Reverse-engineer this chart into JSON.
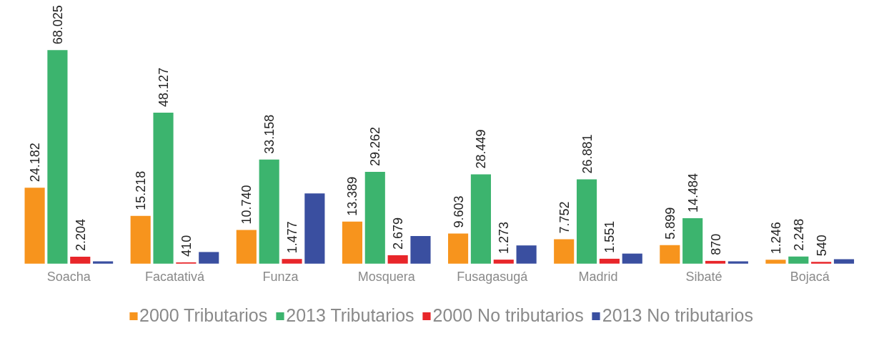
{
  "chart_data": {
    "type": "bar",
    "legend": "bottom",
    "categories": [
      "Soacha",
      "Facatativá",
      "Funza",
      "Mosquera",
      "Fusagasugá",
      "Madrid",
      "Sibaté",
      "Bojacá"
    ],
    "series": [
      {
        "name": "2000 Tributarios",
        "color": "#f7941d",
        "values": [
          24182,
          15218,
          10740,
          13389,
          9603,
          7752,
          5899,
          1246
        ],
        "value_labels": [
          "24.182",
          "15.218",
          "10.740",
          "13.389",
          "9.603",
          "7.752",
          "5.899",
          "1.246"
        ]
      },
      {
        "name": "2013 Tributarios",
        "color": "#3cb46e",
        "values": [
          68025,
          48127,
          33158,
          29262,
          28449,
          26881,
          14484,
          2248
        ],
        "value_labels": [
          "68.025",
          "48.127",
          "33.158",
          "29.262",
          "28.449",
          "26.881",
          "14.484",
          "2.248"
        ]
      },
      {
        "name": "2000 No tributarios",
        "color": "#e8262a",
        "values": [
          2204,
          410,
          1477,
          2679,
          1273,
          1551,
          870,
          540
        ],
        "value_labels": [
          "2.204",
          "410",
          "1.477",
          "2.679",
          "1.273",
          "1.551",
          "870",
          "540"
        ]
      },
      {
        "name": "2013 No tributarios",
        "color": "#3a4fa0",
        "values": [
          700,
          3700,
          22400,
          8800,
          5800,
          3200,
          700,
          1400
        ],
        "value_labels": [
          null,
          null,
          null,
          null,
          null,
          null,
          null,
          null
        ]
      }
    ]
  }
}
